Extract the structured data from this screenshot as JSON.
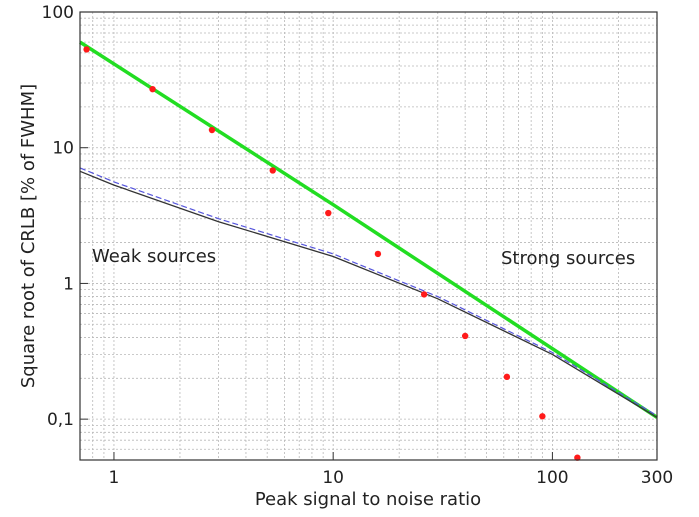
{
  "chart_data": {
    "type": "line",
    "title": "",
    "xlabel": "Peak signal to noise ratio",
    "ylabel": "Square root of CRLB [% of FWHM]",
    "xscale": "log",
    "yscale": "log",
    "xlim": [
      0.7,
      300
    ],
    "ylim": [
      0.05,
      100
    ],
    "grid": true,
    "legend": "none",
    "x_ticks": [
      {
        "value": 1,
        "label": "1"
      },
      {
        "value": 10,
        "label": "10"
      },
      {
        "value": 100,
        "label": "100"
      },
      {
        "value": 300,
        "label": "300"
      }
    ],
    "y_ticks": [
      {
        "value": 0.1,
        "label": "0,1"
      },
      {
        "value": 1,
        "label": "1"
      },
      {
        "value": 10,
        "label": "10"
      },
      {
        "value": 100,
        "label": "100"
      }
    ],
    "annotations": [
      {
        "text": "Weak sources"
      },
      {
        "text": "Strong sources"
      }
    ],
    "series": [
      {
        "style": "line",
        "color": "#22dd22",
        "x": [
          0.7,
          10,
          300
        ],
        "y": [
          60,
          3.8,
          0.103
        ]
      },
      {
        "style": "line",
        "color": "#333333",
        "x": [
          0.7,
          1,
          3,
          10,
          30,
          100,
          300
        ],
        "y": [
          6.7,
          5.3,
          2.85,
          1.58,
          0.77,
          0.3,
          0.103
        ]
      },
      {
        "style": "dashed",
        "color": "#5555dd",
        "x": [
          0.7,
          1,
          3,
          10,
          30,
          100,
          300
        ],
        "y": [
          7.1,
          5.6,
          3.0,
          1.65,
          0.8,
          0.31,
          0.106
        ]
      },
      {
        "style": "points",
        "color": "#ff1a1a",
        "x": [
          0.75,
          1.5,
          2.8,
          5.3,
          9.5,
          16,
          26,
          40,
          62,
          90,
          130
        ],
        "y": [
          53,
          27,
          13.5,
          6.8,
          3.3,
          1.65,
          0.83,
          0.41,
          0.205,
          0.105,
          0.052
        ]
      }
    ]
  }
}
